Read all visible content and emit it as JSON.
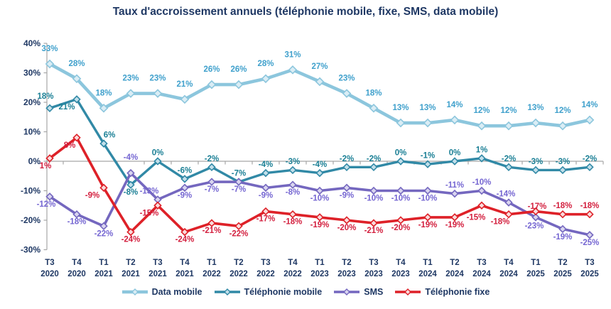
{
  "title": "Taux d'accroissement annuels (téléphonie mobile, fixe, SMS, data mobile)",
  "colors": {
    "title_text": "#1F3864",
    "axis_text": "#1F3864",
    "axis_line": "#A6A6A6"
  },
  "chart_data": {
    "type": "line",
    "title": "Taux d'accroissement annuels (téléphonie mobile, fixe, SMS, data mobile)",
    "categories": [
      "T3 2020",
      "T4 2020",
      "T1 2021",
      "T2 2021",
      "T3 2021",
      "T4 2021",
      "T1 2022",
      "T2 2022",
      "T3 2022",
      "T4 2022",
      "T1 2023",
      "T2 2023",
      "T3 2023",
      "T4 2023",
      "T1 2024",
      "T2 2024",
      "T3 2024",
      "T4 2024",
      "T1 2025",
      "T2 2025",
      "T3 2025"
    ],
    "y_axis": {
      "min": -30,
      "max": 40,
      "step": 10,
      "suffix": "%"
    },
    "grid": "zero-axis-line-only",
    "legend_position": "bottom",
    "series": [
      {
        "name": "Data mobile",
        "color": "#8CC6DD",
        "marker_fill": "#DAEDF5",
        "label_color": "#3FA0CC",
        "line_width": 4.6,
        "marker_size": 5.2,
        "values": [
          33,
          28,
          18,
          23,
          23,
          21,
          26,
          26,
          28,
          31,
          27,
          23,
          18,
          13,
          13,
          14,
          12,
          12,
          13,
          12,
          14
        ],
        "label_side": "aaaaaaaaaaaaaaaaaaaaa",
        "label_tweaks": {}
      },
      {
        "name": "Téléphonie mobile",
        "color": "#3189A6",
        "marker_fill": "#C2DFEA",
        "label_color": "#1A7F95",
        "line_width": 3.4,
        "marker_size": 4.6,
        "values": [
          18,
          21,
          6,
          -8,
          0,
          -6,
          -2,
          -7,
          -4,
          -3,
          -4,
          -2,
          -2,
          0,
          -1,
          0,
          1,
          -2,
          -3,
          -3,
          -2
        ],
        "label_side": "ababaaaaaaaaaaaaaaaaa",
        "label_tweaks": {
          "0": [
            -6,
            -5
          ],
          "1": [
            -14,
            0
          ],
          "2": [
            8,
            0
          ]
        }
      },
      {
        "name": "SMS",
        "color": "#7467BF",
        "marker_fill": "#D9D5EF",
        "label_color": "#7566D2",
        "line_width": 3.6,
        "marker_size": 4.6,
        "values": [
          -12,
          -18,
          -22,
          -4,
          -13,
          -9,
          -7,
          -7,
          -9,
          -8,
          -10,
          -9,
          -10,
          -10,
          -10,
          -11,
          -10,
          -14,
          -19,
          -23,
          -25
        ],
        "label_side": "bbbaabbbbbbbbbbaaabbb",
        "label_tweaks": {
          "0": [
            -5,
            0
          ],
          "3": [
            0,
            -10
          ],
          "4": [
            -12,
            0
          ],
          "17": [
            -4,
            0
          ],
          "18": [
            38,
            17
          ],
          "19": [
            -40,
            -15
          ]
        }
      },
      {
        "name": "Téléphonie fixe",
        "color": "#DE2128",
        "marker_fill": "#F9DBDC",
        "label_color": "#D31F3E",
        "line_width": 3.6,
        "marker_size": 4.6,
        "values": [
          1,
          8,
          -9,
          -24,
          -15,
          -24,
          -21,
          -22,
          -17,
          -18,
          -19,
          -20,
          -21,
          -20,
          -19,
          -19,
          -15,
          -18,
          -17,
          -18,
          -18
        ],
        "label_side": "bbbbbbbbbbbbbbbbbbaaa",
        "label_tweaks": {
          "0": [
            -6,
            0
          ],
          "1": [
            -10,
            0
          ],
          "2": [
            -16,
            0
          ],
          "4": [
            -12,
            0
          ],
          "16": [
            -8,
            6
          ],
          "17": [
            -12,
            0
          ],
          "18": [
            2,
            5
          ]
        }
      }
    ]
  }
}
